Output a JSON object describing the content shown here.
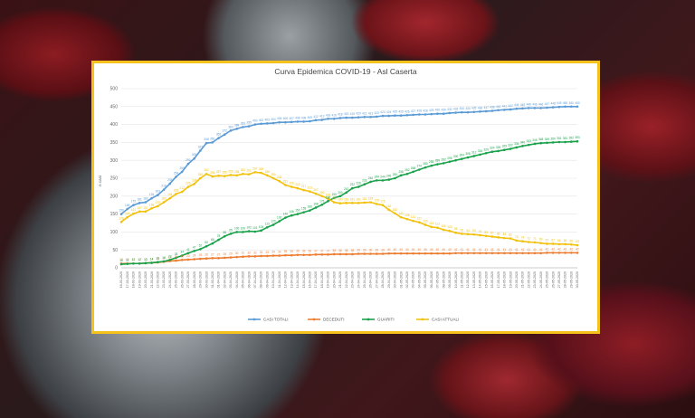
{
  "chart_data": {
    "type": "line",
    "title": "Curva Epidemica COVID-19 - Asl Caserta",
    "ylabel": "n casi",
    "ylim": [
      0,
      500
    ],
    "yticks": [
      0,
      50,
      100,
      150,
      200,
      250,
      300,
      350,
      400,
      450,
      500
    ],
    "grid": true,
    "legend_position": "bottom",
    "categories": [
      "16-03-2020",
      "17-03-2020",
      "18-03-2020",
      "19-03-2020",
      "20-03-2020",
      "21-03-2020",
      "22-03-2020",
      "23-03-2020",
      "24-03-2020",
      "25-03-2020",
      "26-03-2020",
      "27-03-2020",
      "28-03-2020",
      "29-03-2020",
      "30-03-2020",
      "31-03-2020",
      "01-04-2020",
      "02-04-2020",
      "03-04-2020",
      "04-04-2020",
      "05-04-2020",
      "06-04-2020",
      "07-04-2020",
      "08-04-2020",
      "09-04-2020",
      "10-04-2020",
      "11-04-2020",
      "12-04-2020",
      "13-04-2020",
      "14-04-2020",
      "15-04-2020",
      "16-04-2020",
      "17-04-2020",
      "18-04-2020",
      "19-04-2020",
      "20-04-2020",
      "21-04-2020",
      "22-04-2020",
      "23-04-2020",
      "24-04-2020",
      "25-04-2020",
      "26-04-2020",
      "27-04-2020",
      "28-04-2020",
      "29-04-2020",
      "30-04-2020",
      "01-05-2020",
      "02-05-2020",
      "03-05-2020",
      "04-05-2020",
      "05-05-2020",
      "06-05-2020",
      "07-05-2020",
      "08-05-2020",
      "09-05-2020",
      "10-05-2020",
      "11-05-2020",
      "12-05-2020",
      "13-05-2020",
      "14-05-2020",
      "15-05-2020",
      "16-05-2020",
      "17-05-2020",
      "18-05-2020",
      "19-05-2020",
      "20-05-2020",
      "21-05-2020",
      "22-05-2020",
      "23-05-2020",
      "24-05-2020",
      "25-05-2020",
      "26-05-2020",
      "27-05-2020",
      "28-05-2020",
      "29-05-2020",
      "30-05-2020"
    ],
    "series": [
      {
        "name": "CASI TOTALI",
        "color": "#5b9bd5",
        "values": [
          150,
          164,
          175,
          181,
          183,
          194,
          203,
          218,
          235,
          254,
          268,
          290,
          305,
          327,
          348,
          350,
          362,
          372,
          383,
          388,
          393,
          395,
          400,
          402,
          403,
          404,
          406,
          406,
          407,
          408,
          408,
          409,
          412,
          413,
          416,
          416,
          418,
          419,
          419,
          420,
          421,
          421,
          422,
          424,
          424,
          425,
          425,
          426,
          427,
          428,
          428,
          429,
          430,
          430,
          432,
          433,
          434,
          434,
          435,
          436,
          437,
          438,
          440,
          441,
          442,
          444,
          445,
          446,
          446,
          446,
          447,
          448,
          449,
          450,
          450,
          450
        ]
      },
      {
        "name": "DECEDUTI",
        "color": "#ed7d31",
        "values": [
          12,
          12,
          12,
          12,
          13,
          14,
          15,
          17,
          19,
          20,
          22,
          23,
          24,
          25,
          26,
          27,
          27,
          28,
          29,
          30,
          31,
          32,
          32,
          33,
          33,
          34,
          34,
          35,
          35,
          36,
          36,
          36,
          37,
          37,
          37,
          38,
          38,
          38,
          38,
          39,
          39,
          39,
          39,
          39,
          40,
          40,
          40,
          40,
          40,
          40,
          40,
          40,
          40,
          40,
          40,
          41,
          41,
          41,
          41,
          41,
          41,
          41,
          41,
          41,
          41,
          41,
          41,
          41,
          41,
          41,
          42,
          42,
          42,
          42,
          42,
          42
        ]
      },
      {
        "name": "GUARITI",
        "color": "#1aa24b",
        "values": [
          10,
          11,
          12,
          12,
          13,
          14,
          16,
          18,
          22,
          28,
          34,
          41,
          47,
          52,
          60,
          68,
          78,
          88,
          95,
          100,
          100,
          102,
          101,
          104,
          113,
          120,
          130,
          140,
          146,
          150,
          155,
          160,
          168,
          176,
          186,
          195,
          200,
          210,
          222,
          226,
          233,
          240,
          244,
          244,
          246,
          250,
          258,
          262,
          268,
          274,
          280,
          285,
          289,
          292,
          296,
          300,
          304,
          308,
          312,
          316,
          320,
          324,
          326,
          329,
          332,
          336,
          340,
          343,
          346,
          348,
          349,
          350,
          351,
          351,
          352,
          353
        ]
      },
      {
        "name": "CASI ATTUALI",
        "color": "#f2c10e",
        "values": [
          128,
          141,
          151,
          157,
          157,
          166,
          172,
          183,
          194,
          206,
          212,
          226,
          234,
          250,
          262,
          255,
          257,
          256,
          259,
          258,
          262,
          261,
          267,
          265,
          258,
          250,
          242,
          231,
          226,
          222,
          217,
          213,
          207,
          200,
          193,
          183,
          180,
          181,
          181,
          181,
          182,
          183,
          178,
          175,
          162,
          152,
          141,
          136,
          131,
          127,
          120,
          114,
          112,
          106,
          103,
          98,
          95,
          94,
          93,
          91,
          89,
          87,
          85,
          83,
          82,
          76,
          74,
          72,
          71,
          69,
          67,
          67,
          66,
          66,
          65,
          63
        ]
      }
    ]
  }
}
